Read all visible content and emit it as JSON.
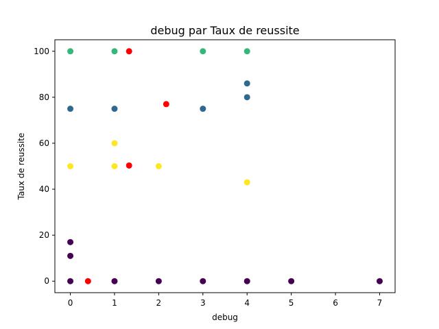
{
  "chart_data": {
    "type": "scatter",
    "title": "debug par Taux de reussite",
    "xlabel": "debug",
    "ylabel": "Taux de reussite",
    "xlim": [
      -0.35,
      7.35
    ],
    "ylim": [
      -5,
      105
    ],
    "xticks": [
      0,
      1,
      2,
      3,
      4,
      5,
      6,
      7
    ],
    "yticks": [
      0,
      20,
      40,
      60,
      80,
      100
    ],
    "grid": false,
    "colors": {
      "cluster_0": "#440154",
      "cluster_1": "#31688e",
      "cluster_2": "#35b779",
      "cluster_3": "#fde725",
      "centroid": "#ff0000"
    },
    "points": [
      {
        "x": 0,
        "y": 100,
        "group": "cluster_2"
      },
      {
        "x": 1,
        "y": 100,
        "group": "cluster_2"
      },
      {
        "x": 3,
        "y": 100,
        "group": "cluster_2"
      },
      {
        "x": 4,
        "y": 100,
        "group": "cluster_2"
      },
      {
        "x": 0,
        "y": 75,
        "group": "cluster_1"
      },
      {
        "x": 1,
        "y": 75,
        "group": "cluster_1"
      },
      {
        "x": 3,
        "y": 75,
        "group": "cluster_1"
      },
      {
        "x": 4,
        "y": 86,
        "group": "cluster_1"
      },
      {
        "x": 4,
        "y": 80,
        "group": "cluster_1"
      },
      {
        "x": 1,
        "y": 60,
        "group": "cluster_3"
      },
      {
        "x": 0,
        "y": 50,
        "group": "cluster_3"
      },
      {
        "x": 1,
        "y": 50,
        "group": "cluster_3"
      },
      {
        "x": 2,
        "y": 50,
        "group": "cluster_3"
      },
      {
        "x": 4,
        "y": 43,
        "group": "cluster_3"
      },
      {
        "x": 0,
        "y": 17,
        "group": "cluster_0"
      },
      {
        "x": 0,
        "y": 11,
        "group": "cluster_0"
      },
      {
        "x": 0,
        "y": 0,
        "group": "cluster_0"
      },
      {
        "x": 1,
        "y": 0,
        "group": "cluster_0"
      },
      {
        "x": 2,
        "y": 0,
        "group": "cluster_0"
      },
      {
        "x": 3,
        "y": 0,
        "group": "cluster_0"
      },
      {
        "x": 4,
        "y": 0,
        "group": "cluster_0"
      },
      {
        "x": 5,
        "y": 0,
        "group": "cluster_0"
      },
      {
        "x": 7,
        "y": 0,
        "group": "cluster_0"
      },
      {
        "x": 1.33,
        "y": 100,
        "group": "centroid"
      },
      {
        "x": 2.17,
        "y": 77,
        "group": "centroid"
      },
      {
        "x": 1.33,
        "y": 50.3,
        "group": "centroid"
      },
      {
        "x": 0.4,
        "y": 0,
        "group": "centroid"
      }
    ]
  }
}
